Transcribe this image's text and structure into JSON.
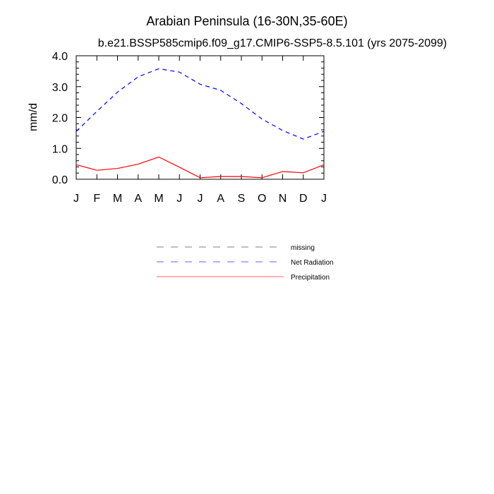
{
  "chart_data": {
    "type": "line",
    "title": "Arabian Peninsula (16-30N,35-60E)",
    "subtitle": "b.e21.BSSP585cmip6.f09_g17.CMIP6-SSP5-8.5.101 (yrs 2075-2099)",
    "ylabel": "mm/d",
    "xlabel": "",
    "categories": [
      "J",
      "F",
      "M",
      "A",
      "M",
      "J",
      "J",
      "A",
      "S",
      "O",
      "N",
      "D",
      "J"
    ],
    "ylim": [
      0,
      4
    ],
    "yticks": [
      "0.0",
      "1.0",
      "2.0",
      "3.0",
      "4.0"
    ],
    "grid": false,
    "legend_position": "below",
    "series": [
      {
        "name": "Net Radiation",
        "style": "dashed",
        "color": "#0000ff",
        "values": [
          1.55,
          2.2,
          2.82,
          3.32,
          3.58,
          3.47,
          3.08,
          2.88,
          2.45,
          1.95,
          1.58,
          1.3,
          1.55
        ]
      },
      {
        "name": "Precipitation",
        "style": "solid",
        "color": "#ff0000",
        "values": [
          0.47,
          0.29,
          0.35,
          0.49,
          0.72,
          0.39,
          0.05,
          0.09,
          0.09,
          0.05,
          0.25,
          0.21,
          0.47
        ]
      }
    ],
    "legend": [
      {
        "label": "missing",
        "style": "dashed",
        "color": "#999999"
      },
      {
        "label": "Net Radiation",
        "style": "dashed",
        "color": "#8080ff"
      },
      {
        "label": "Precipitation",
        "style": "solid",
        "color": "#ff8080"
      }
    ]
  }
}
